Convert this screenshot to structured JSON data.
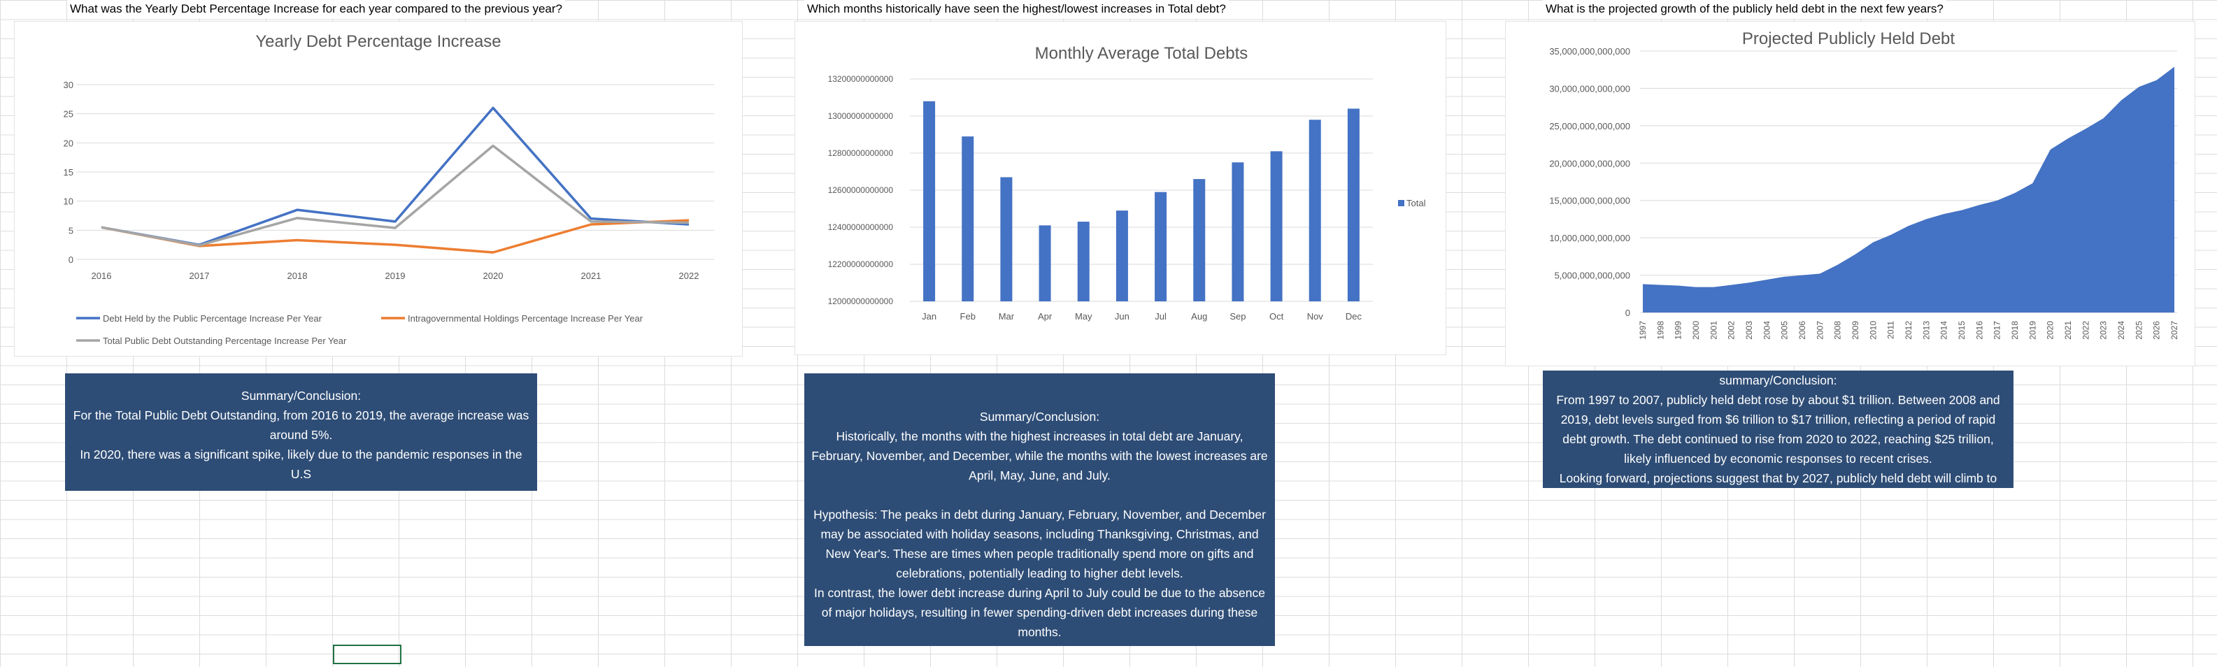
{
  "questions": [
    "What was the Yearly Debt Percentage Increase for each year compared to the previous year?",
    "Which months historically have seen the highest/lowest increases in Total debt?",
    "What is the projected growth of the publicly held debt in the next few years?"
  ],
  "chart_data": [
    {
      "type": "line",
      "title": "Yearly Debt Percentage Increase",
      "x": [
        "2016",
        "2017",
        "2018",
        "2019",
        "2020",
        "2021",
        "2022"
      ],
      "yticks": [
        "0",
        "5",
        "10",
        "15",
        "20",
        "25",
        "30"
      ],
      "ylim": [
        0,
        30
      ],
      "grid": true,
      "legend_position": "bottom",
      "series": [
        {
          "name": "Debt Held by the Public Percentage Increase Per Year",
          "color": "#4472c4",
          "values": [
            5.5,
            2.5,
            8.5,
            6.5,
            26,
            7,
            6
          ]
        },
        {
          "name": "Intragovernmental Holdings Percentage Increase Per Year",
          "color": "#ed7d31",
          "values": [
            5.5,
            2.3,
            3.3,
            2.5,
            1.2,
            6,
            6.7
          ]
        },
        {
          "name": "Total Public Debt Outstanding Percentage Increase Per Year",
          "color": "#a5a5a5",
          "values": [
            5.5,
            2.4,
            7.1,
            5.4,
            19.5,
            6.5,
            6.3
          ]
        }
      ]
    },
    {
      "type": "bar",
      "title": "Monthly Average Total Debts",
      "categories": [
        "Jan",
        "Feb",
        "Mar",
        "Apr",
        "May",
        "Jun",
        "Jul",
        "Aug",
        "Sep",
        "Oct",
        "Nov",
        "Dec"
      ],
      "yticks": [
        "12000000000000",
        "12200000000000",
        "12400000000000",
        "12600000000000",
        "12800000000000",
        "13000000000000",
        "13200000000000"
      ],
      "ylim": [
        12000000000000,
        13200000000000
      ],
      "grid": true,
      "legend_position": "right",
      "series": [
        {
          "name": "Total",
          "color": "#4472c4",
          "values": [
            13080000000000,
            12890000000000,
            12670000000000,
            12410000000000,
            12430000000000,
            12490000000000,
            12590000000000,
            12660000000000,
            12750000000000,
            12810000000000,
            12980000000000,
            13040000000000
          ]
        }
      ]
    },
    {
      "type": "area",
      "title": "Projected Publicly Held Debt",
      "x": [
        "1997",
        "1998",
        "1999",
        "2000",
        "2001",
        "2002",
        "2003",
        "2004",
        "2005",
        "2006",
        "2007",
        "2008",
        "2009",
        "2010",
        "2011",
        "2012",
        "2013",
        "2014",
        "2015",
        "2016",
        "2017",
        "2018",
        "2019",
        "2020",
        "2021",
        "2022",
        "2023",
        "2024",
        "2025",
        "2026",
        "2027"
      ],
      "yticks": [
        "0",
        "5,000,000,000,000",
        "10,000,000,000,000",
        "15,000,000,000,000",
        "20,000,000,000,000",
        "25,000,000,000,000",
        "30,000,000,000,000",
        "35,000,000,000,000"
      ],
      "ylim": [
        0,
        35000000000000
      ],
      "grid": true,
      "legend_position": "none",
      "series": [
        {
          "color": "#4472c4",
          "values": [
            3800000000000,
            3700000000000,
            3600000000000,
            3400000000000,
            3400000000000,
            3700000000000,
            4000000000000,
            4400000000000,
            4800000000000,
            5000000000000,
            5200000000000,
            6400000000000,
            7800000000000,
            9400000000000,
            10400000000000,
            11600000000000,
            12500000000000,
            13200000000000,
            13700000000000,
            14400000000000,
            15000000000000,
            16000000000000,
            17300000000000,
            21800000000000,
            23300000000000,
            24600000000000,
            26000000000000,
            28400000000000,
            30200000000000,
            31100000000000,
            32900000000000
          ]
        }
      ]
    }
  ],
  "summaries": [
    "Summary/Conclusion:\nFor the Total Public Debt Outstanding, from 2016 to 2019, the average increase was around 5%.\nIn 2020, there was a significant spike, likely due to the pandemic responses in the U.S",
    "Summary/Conclusion:\nHistorically, the months with the highest increases in total debt are January, February, November, and December, while the months with the lowest increases are April, May, June, and July.\n\nHypothesis: The peaks in debt during January, February, November, and December may be associated with holiday seasons, including Thanksgiving, Christmas, and New Year's. These are times when people traditionally spend more on gifts and celebrations, potentially leading to higher debt levels.\nIn contrast, the lower debt increase during April to July could be due to the absence of major holidays, resulting in fewer spending-driven debt increases during these months.",
    "summary/Conclusion:\nFrom 1997 to 2007, publicly held debt rose by about $1 trillion. Between 2008 and 2019, debt levels surged from $6 trillion to $17 trillion, reflecting a period of rapid debt growth. The debt continued to rise from 2020 to 2022, reaching $25 trillion, likely influenced by economic responses to recent crises.\nLooking forward, projections suggest that by 2027, publicly held debt will climb to"
  ]
}
